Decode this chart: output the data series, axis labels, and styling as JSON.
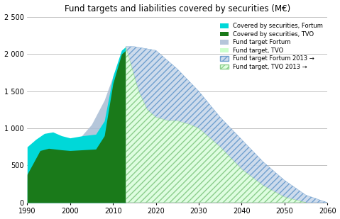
{
  "title": "Fund targets and liabilities covered by securities (M€)",
  "xlim": [
    1990,
    2060
  ],
  "ylim": [
    0,
    2500
  ],
  "yticks": [
    0,
    500,
    1000,
    1500,
    2000,
    2500
  ],
  "ytick_labels": [
    "0",
    "500",
    "1 000",
    "1 500",
    "2 000",
    "2 500"
  ],
  "xticks": [
    1990,
    2000,
    2010,
    2020,
    2030,
    2040,
    2050,
    2060
  ],
  "color_covered_fortum": "#00d8d8",
  "color_covered_tvo": "#1a7a1a",
  "color_fund_target_fortum": "#a8bcd4",
  "color_fund_target_tvo": "#ccffcc",
  "background": "#ffffff",
  "legend_labels": [
    "Covered by securities, Fortum",
    "Covered by securities, TVO",
    "Fund target Fortum",
    "Fund target, TVO",
    "Fund target Fortum 2013 →",
    "Fund target, TVO 2013 →"
  ]
}
